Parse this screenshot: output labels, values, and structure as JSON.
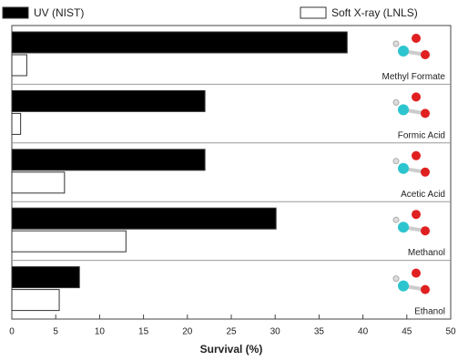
{
  "chart_data": {
    "type": "hbar",
    "categories": [
      "Methyl Formate",
      "Formic Acid",
      "Acetic Acid",
      "Methanol",
      "Ethanol"
    ],
    "series": [
      {
        "name": "UV (NIST)",
        "color": "#000000",
        "values": [
          38.2,
          22,
          22,
          30.1,
          7.7
        ]
      },
      {
        "name": "Soft X-ray (LNLS)",
        "color": "#ffffff",
        "values": [
          1.7,
          1,
          6,
          13,
          5.4
        ]
      }
    ],
    "xlabel": "Survival (%)",
    "xlim": [
      0,
      50
    ],
    "xticks": [
      0,
      5,
      10,
      15,
      20,
      25,
      30,
      35,
      40,
      45,
      50
    ]
  }
}
